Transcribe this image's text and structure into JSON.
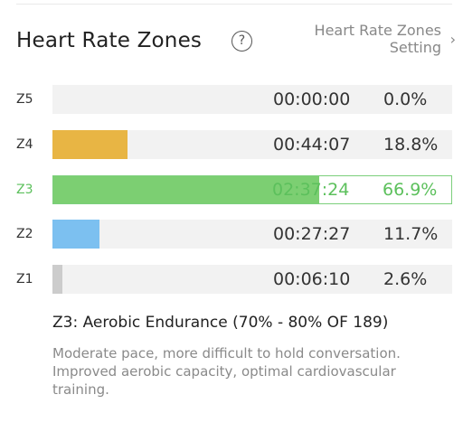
{
  "header": {
    "title": "Heart Rate Zones",
    "help_icon": "?",
    "setting_line1": "Heart Rate Zones",
    "setting_line2": "Setting",
    "setting_chevron": "›"
  },
  "zones": [
    {
      "label": "Z5",
      "time": "00:00:00",
      "percent": "0.0%",
      "fraction": 0.0,
      "color": "#cfcfcf",
      "active": false
    },
    {
      "label": "Z4",
      "time": "00:44:07",
      "percent": "18.8%",
      "fraction": 0.188,
      "color": "#e8b544",
      "active": false
    },
    {
      "label": "Z3",
      "time": "02:37:24",
      "percent": "66.9%",
      "fraction": 0.669,
      "color": "#7ccf72",
      "active": true
    },
    {
      "label": "Z2",
      "time": "00:27:27",
      "percent": "11.7%",
      "fraction": 0.117,
      "color": "#7cc0f0",
      "active": false
    },
    {
      "label": "Z1",
      "time": "00:06:10",
      "percent": "2.6%",
      "fraction": 0.026,
      "color": "#cccccc",
      "active": false
    }
  ],
  "selected_zone": {
    "heading": "Z3: Aerobic Endurance (70% - 80% OF 189)",
    "description": "Moderate pace, more difficult to hold conversation. Improved aerobic capacity, optimal cardiovascular training."
  }
}
